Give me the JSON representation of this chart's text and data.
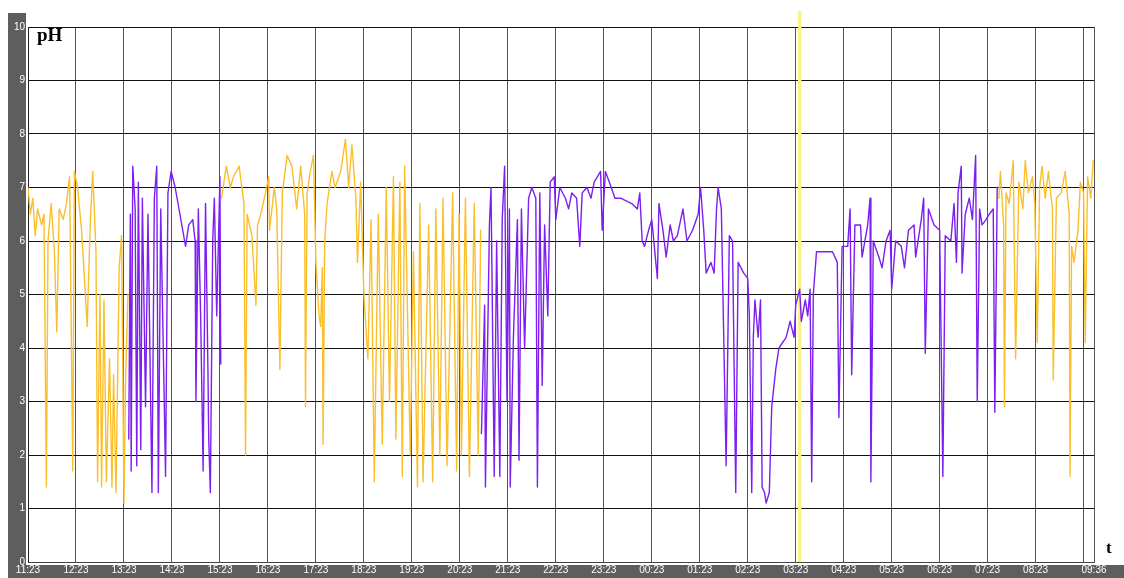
{
  "chart_data": {
    "type": "line",
    "xlabel": "t",
    "ylabel": "pH",
    "xlim": [
      "--01-01T11:23",
      "--01-02T09:36"
    ],
    "xticks": [
      {
        "value": "--01-01T11:23",
        "label": "11:23"
      },
      {
        "value": "--01-01T12:23",
        "label": "12:23"
      },
      {
        "value": "--01-01T13:23",
        "label": "13:23"
      },
      {
        "value": "--01-01T14:23",
        "label": "14:23"
      },
      {
        "value": "--01-01T15:23",
        "label": "15:23"
      },
      {
        "value": "--01-01T16:23",
        "label": "16:23"
      },
      {
        "value": "--01-01T17:23",
        "label": "17:23"
      },
      {
        "value": "--01-01T18:23",
        "label": "18:23"
      },
      {
        "value": "--01-01T19:23",
        "label": "19:23"
      },
      {
        "value": "--01-01T20:23",
        "label": "20:23"
      },
      {
        "value": "--01-01T21:23",
        "label": "21:23"
      },
      {
        "value": "--01-01T22:23",
        "label": "22:23"
      },
      {
        "value": "--01-01T23:23",
        "label": "23:23"
      },
      {
        "value": "--01-02T00:23",
        "label": "00:23"
      },
      {
        "value": "--01-02T01:23",
        "label": "01:23"
      },
      {
        "value": "--01-02T02:23",
        "label": "02:23"
      },
      {
        "value": "--01-02T03:23",
        "label": "03:23"
      },
      {
        "value": "--01-02T04:23",
        "label": "04:23"
      },
      {
        "value": "--01-02T05:23",
        "label": "05:23"
      },
      {
        "value": "--01-02T06:23",
        "label": "06:23"
      },
      {
        "value": "--01-02T07:23",
        "label": "07:23"
      },
      {
        "value": "--01-02T08:23",
        "label": "08:23"
      },
      {
        "value": "--01-02T09:23",
        "label": null
      },
      {
        "value": "--01-02T09:36",
        "label": "09:36"
      }
    ],
    "ylim": [
      0,
      10
    ],
    "yticks": [
      0,
      1,
      2,
      3,
      4,
      5,
      6,
      7,
      8,
      9,
      10
    ],
    "grid": true,
    "ref_lines": [
      {
        "axis": "x",
        "value": "--01-02T03:28",
        "color": "#f9f38a"
      }
    ],
    "series": [
      {
        "color": "#fbbf2c",
        "x": [
          "--01-01T11:23",
          "--01-01T11:26",
          "--01-01T11:29",
          "--01-01T11:32",
          "--01-01T11:35",
          "--01-01T11:40",
          "--01-01T11:43",
          "--01-01T11:46",
          "--01-01T11:48",
          "--01-01T11:52",
          "--01-01T11:56",
          "--01-01T11:59",
          "--01-01T12:02",
          "--01-01T12:07",
          "--01-01T12:11",
          "--01-01T12:15",
          "--01-01T12:19",
          "--01-01T12:21",
          "--01-01T12:25",
          "--01-01T12:30",
          "--01-01T12:34",
          "--01-01T12:37",
          "--01-01T12:41",
          "--01-01T12:44",
          "--01-01T12:48",
          "--01-01T12:50",
          "--01-01T12:53",
          "--01-01T12:55",
          "--01-01T12:58",
          "--01-01T13:01",
          "--01-01T13:05",
          "--01-01T13:08",
          "--01-01T13:10",
          "--01-01T13:13",
          "--01-01T13:17",
          "--01-01T13:20",
          "--01-01T13:23",
          "--01-01T13:25",
          "--01-01T13:28",
          "--01-01T14:30",
          "--01-01T15:25",
          "--01-01T15:31",
          "--01-01T15:36",
          "--01-01T15:40",
          "--01-01T15:47",
          "--01-01T15:53",
          "--01-01T15:55",
          "--01-01T15:57",
          "--01-01T16:03",
          "--01-01T16:08",
          "--01-01T16:10",
          "--01-01T16:14",
          "--01-01T16:20",
          "--01-01T16:24",
          "--01-01T16:25",
          "--01-01T16:31",
          "--01-01T16:34",
          "--01-01T16:38",
          "--01-01T16:41",
          "--01-01T16:47",
          "--01-01T16:53",
          "--01-01T16:59",
          "--01-01T17:04",
          "--01-01T17:09",
          "--01-01T17:10",
          "--01-01T17:12",
          "--01-01T17:16",
          "--01-01T17:20",
          "--01-01T17:23",
          "--01-01T17:27",
          "--01-01T17:29",
          "--01-01T17:31",
          "--01-01T17:32",
          "--01-01T17:34",
          "--01-01T17:37",
          "--01-01T17:43",
          "--01-01T17:47",
          "--01-01T17:54",
          "--01-01T18:00",
          "--01-01T18:04",
          "--01-01T18:08",
          "--01-01T18:13",
          "--01-01T18:15",
          "--01-01T18:19",
          "--01-01T18:23",
          "--01-01T18:28",
          "--01-01T18:32",
          "--01-01T18:36",
          "--01-01T18:41",
          "--01-01T18:46",
          "--01-01T18:51",
          "--01-01T18:55",
          "--01-01T19:00",
          "--01-01T19:03",
          "--01-01T19:08",
          "--01-01T19:11",
          "--01-01T19:14",
          "--01-01T19:21",
          "--01-01T19:25",
          "--01-01T19:30",
          "--01-01T19:33",
          "--01-01T19:37",
          "--01-01T19:44",
          "--01-01T19:49",
          "--01-01T19:53",
          "--01-01T19:58",
          "--01-01T20:02",
          "--01-01T20:07",
          "--01-01T20:14",
          "--01-01T20:19",
          "--01-01T20:22",
          "--01-01T20:25",
          "--01-01T20:30",
          "--01-01T20:35",
          "--01-01T20:41",
          "--01-01T20:46",
          "--01-01T20:49",
          "--01-02T02:00",
          "--01-02T07:37",
          "--01-02T07:39",
          "--01-02T07:43",
          "--01-02T07:44",
          "--01-02T07:46",
          "--01-02T07:50",
          "--01-02T07:55",
          "--01-02T07:58",
          "--01-02T08:02",
          "--01-02T08:07",
          "--01-02T08:10",
          "--01-02T08:14",
          "--01-02T08:19",
          "--01-02T08:22",
          "--01-02T08:25",
          "--01-02T08:28",
          "--01-02T08:31",
          "--01-02T08:35",
          "--01-02T08:39",
          "--01-02T08:44",
          "--01-02T08:45",
          "--01-02T08:49",
          "--01-02T08:55",
          "--01-02T09:00",
          "--01-02T09:05",
          "--01-02T09:06",
          "--01-02T09:08",
          "--01-02T09:11",
          "--01-02T09:16",
          "--01-02T09:19",
          "--01-02T09:23",
          "--01-02T09:25",
          "--01-02T09:28",
          "--01-02T09:32",
          "--01-02T09:35"
        ],
        "values": [
          7.0,
          6.5,
          6.8,
          6.1,
          6.6,
          6.3,
          6.5,
          1.4,
          6.0,
          6.7,
          5.8,
          4.3,
          6.6,
          6.4,
          6.7,
          7.2,
          1.7,
          7.3,
          7.0,
          6.2,
          5.2,
          4.4,
          6.4,
          7.3,
          5.8,
          1.5,
          5.0,
          1.4,
          4.9,
          1.5,
          3.8,
          1.4,
          3.5,
          1.3,
          5.5,
          6.1,
          1.1,
          3.4,
          5.0,
          null,
          6.8,
          7.4,
          7.0,
          7.2,
          7.4,
          6.7,
          2.0,
          6.5,
          6.1,
          4.8,
          6.3,
          6.5,
          6.9,
          7.2,
          6.2,
          7.0,
          6.6,
          3.6,
          6.9,
          7.6,
          7.4,
          6.6,
          7.4,
          6.5,
          2.9,
          6.9,
          7.3,
          7.6,
          5.6,
          4.6,
          4.4,
          5.5,
          2.2,
          6.0,
          6.7,
          7.3,
          7.0,
          7.3,
          7.9,
          7.0,
          7.8,
          6.8,
          5.6,
          7.1,
          5.0,
          3.8,
          6.4,
          1.5,
          6.5,
          2.2,
          7.0,
          3.0,
          7.2,
          2.3,
          7.1,
          1.6,
          7.4,
          2.0,
          5.8,
          1.4,
          6.7,
          1.5,
          6.3,
          1.5,
          6.6,
          2.0,
          6.8,
          1.8,
          6.9,
          1.7,
          6.5,
          2.0,
          6.8,
          1.6,
          6.7,
          2.0,
          6.2,
          null,
          6.8,
          7.3,
          6.3,
          2.9,
          6.9,
          6.7,
          7.5,
          3.8,
          7.1,
          6.6,
          7.5,
          6.9,
          7.2,
          6.7,
          4.1,
          7.0,
          7.4,
          6.8,
          7.3,
          6.6,
          3.4,
          6.8,
          6.9,
          7.3,
          6.5,
          1.6,
          5.9,
          5.6,
          6.2,
          7.1,
          6.9,
          4.1,
          7.2,
          6.8,
          7.5
        ]
      },
      {
        "color": "#7c1ff0",
        "x": [
          "--01-01T13:29",
          "--01-01T13:31",
          "--01-01T13:32",
          "--01-01T13:34",
          "--01-01T13:37",
          "--01-01T13:39",
          "--01-01T13:41",
          "--01-01T13:44",
          "--01-01T13:46",
          "--01-01T13:50",
          "--01-01T13:53",
          "--01-01T13:58",
          "--01-01T14:01",
          "--01-01T14:04",
          "--01-01T14:06",
          "--01-01T14:09",
          "--01-01T14:13",
          "--01-01T14:15",
          "--01-01T14:18",
          "--01-01T14:22",
          "--01-01T14:27",
          "--01-01T14:33",
          "--01-01T14:40",
          "--01-01T14:44",
          "--01-01T14:49",
          "--01-01T14:52",
          "--01-01T14:53",
          "--01-01T14:56",
          "--01-01T14:59",
          "--01-01T15:02",
          "--01-01T15:05",
          "--01-01T15:08",
          "--01-01T15:09",
          "--01-01T15:11",
          "--01-01T15:14",
          "--01-01T15:16",
          "--01-01T15:19",
          "--01-01T15:23",
          "--01-01T15:24",
          "--01-01T18:00",
          "--01-01T20:50",
          "--01-01T20:54",
          "--01-01T20:55",
          "--01-01T21:00",
          "--01-01T21:02",
          "--01-01T21:06",
          "--01-01T21:09",
          "--01-01T21:13",
          "--01-01T21:16",
          "--01-01T21:19",
          "--01-01T21:22",
          "--01-01T21:25",
          "--01-01T21:26",
          "--01-01T21:30",
          "--01-01T21:35",
          "--01-01T21:37",
          "--01-01T21:40",
          "--01-01T21:44",
          "--01-01T21:49",
          "--01-01T21:53",
          "--01-01T21:58",
          "--01-01T22:00",
          "--01-01T22:03",
          "--01-01T22:06",
          "--01-01T22:09",
          "--01-01T22:13",
          "--01-01T22:16",
          "--01-01T22:21",
          "--01-01T22:23",
          "--01-01T22:28",
          "--01-01T22:35",
          "--01-01T22:39",
          "--01-01T22:43",
          "--01-01T22:49",
          "--01-01T22:53",
          "--01-01T22:56",
          "--01-01T23:02",
          "--01-01T23:07",
          "--01-01T23:11",
          "--01-01T23:19",
          "--01-01T23:21",
          "--01-01T23:25",
          "--01-01T23:30",
          "--01-01T23:37",
          "--01-01T23:44",
          "--01-01T23:58",
          "--01-02T00:05",
          "--01-02T00:08",
          "--01-02T00:11",
          "--01-02T00:14",
          "--01-02T00:19",
          "--01-02T00:23",
          "--01-02T00:30",
          "--01-02T00:32",
          "--01-02T00:37",
          "--01-02T00:41",
          "--01-02T00:46",
          "--01-02T00:50",
          "--01-02T00:55",
          "--01-02T01:02",
          "--01-02T01:07",
          "--01-02T01:14",
          "--01-02T01:21",
          "--01-02T01:24",
          "--01-02T01:28",
          "--01-02T01:31",
          "--01-02T01:37",
          "--01-02T01:41",
          "--01-02T01:44",
          "--01-02T01:46",
          "--01-02T01:50",
          "--01-02T01:56",
          "--01-02T02:00",
          "--01-02T02:04",
          "--01-02T02:08",
          "--01-02T02:11",
          "--01-02T02:18",
          "--01-02T02:23",
          "--01-02T02:25",
          "--01-02T02:28",
          "--01-02T02:30",
          "--01-02T02:32",
          "--01-02T02:36",
          "--01-02T02:39",
          "--01-02T02:41",
          "--01-02T02:44",
          "--01-02T02:46",
          "--01-02T02:50",
          "--01-02T02:53",
          "--01-02T02:58",
          "--01-02T03:02",
          "--01-02T03:11",
          "--01-02T03:16",
          "--01-02T03:21",
          "--01-02T03:23",
          "--01-02T03:28",
          "--01-02T03:30",
          "--01-02T03:35",
          "--01-02T03:38",
          "--01-02T03:41",
          "--01-02T03:43",
          "--01-02T03:45",
          "--01-02T03:49",
          "--01-02T03:58",
          "--01-02T04:09",
          "--01-02T04:15",
          "--01-02T04:17",
          "--01-02T04:21",
          "--01-02T04:28",
          "--01-02T04:31",
          "--01-02T04:33",
          "--01-02T04:37",
          "--01-02T04:44",
          "--01-02T04:46",
          "--01-02T04:53",
          "--01-02T04:56",
          "--01-02T04:57",
          "--01-02T05:00",
          "--01-02T05:07",
          "--01-02T05:11",
          "--01-02T05:16",
          "--01-02T05:21",
          "--01-02T05:23",
          "--01-02T05:28",
          "--01-02T05:35",
          "--01-02T05:39",
          "--01-02T05:44",
          "--01-02T05:51",
          "--01-02T05:53",
          "--01-02T06:00",
          "--01-02T06:03",
          "--01-02T06:05",
          "--01-02T06:09",
          "--01-02T06:16",
          "--01-02T06:23",
          "--01-02T06:27",
          "--01-02T06:30",
          "--01-02T06:37",
          "--01-02T06:41",
          "--01-02T06:44",
          "--01-02T06:46",
          "--01-02T06:50",
          "--01-02T06:51",
          "--01-02T06:55",
          "--01-02T07:00",
          "--01-02T07:04",
          "--01-02T07:08",
          "--01-02T07:10",
          "--01-02T07:13",
          "--01-02T07:16",
          "--01-02T07:21",
          "--01-02T07:25",
          "--01-02T07:30",
          "--01-02T07:32",
          "--01-02T07:35"
        ],
        "values": [
          2.3,
          6.5,
          1.7,
          7.4,
          6.6,
          1.8,
          7.1,
          2.1,
          6.8,
          2.9,
          6.5,
          1.3,
          6.8,
          7.4,
          1.3,
          6.6,
          3.3,
          1.6,
          6.9,
          7.3,
          7.0,
          6.5,
          5.9,
          6.3,
          6.4,
          6.0,
          3.0,
          6.6,
          4.5,
          1.7,
          6.7,
          3.6,
          2.3,
          1.3,
          6.0,
          6.8,
          4.6,
          7.2,
          3.7,
          null,
          2.4,
          4.8,
          1.4,
          6.3,
          7.0,
          1.6,
          6.0,
          1.6,
          6.4,
          7.4,
          3.0,
          6.6,
          1.4,
          4.2,
          6.4,
          1.9,
          6.6,
          4.0,
          6.8,
          7.0,
          6.8,
          1.4,
          6.9,
          3.3,
          6.3,
          4.6,
          7.1,
          7.2,
          6.4,
          7.0,
          6.8,
          6.6,
          6.9,
          6.8,
          5.9,
          6.9,
          7.0,
          6.8,
          7.1,
          7.3,
          6.2,
          7.3,
          7.1,
          6.8,
          6.8,
          6.7,
          6.6,
          6.9,
          6.0,
          5.9,
          6.2,
          6.4,
          5.3,
          6.7,
          6.2,
          5.7,
          6.3,
          6.0,
          6.1,
          6.6,
          6.0,
          6.2,
          6.5,
          7.0,
          6.2,
          5.4,
          5.6,
          5.4,
          6.6,
          7.0,
          6.6,
          1.8,
          6.1,
          6.0,
          1.3,
          5.6,
          5.4,
          5.3,
          4.6,
          1.3,
          4.2,
          4.9,
          4.2,
          4.9,
          1.4,
          1.3,
          1.1,
          1.3,
          2.9,
          3.6,
          4.0,
          4.2,
          4.5,
          4.2,
          4.8,
          5.1,
          4.5,
          4.9,
          4.6,
          5.1,
          1.5,
          5.0,
          5.8,
          5.8,
          5.8,
          5.6,
          2.7,
          5.9,
          5.9,
          6.6,
          3.5,
          6.3,
          6.3,
          5.7,
          6.3,
          6.8,
          1.5,
          6.0,
          5.7,
          5.5,
          6.0,
          6.2,
          5.1,
          6.0,
          5.9,
          5.5,
          6.2,
          6.3,
          5.7,
          6.4,
          6.8,
          3.9,
          6.6,
          6.3,
          6.2,
          1.6,
          6.1,
          6.0,
          6.7,
          5.6,
          6.9,
          7.4,
          5.4,
          6.5,
          6.8,
          6.4,
          7.6,
          3.0,
          6.6,
          6.3,
          6.4,
          6.5,
          6.6,
          2.8,
          7.0
        ]
      }
    ]
  }
}
